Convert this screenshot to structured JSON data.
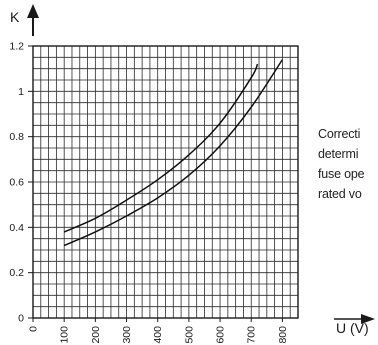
{
  "chart_data": {
    "type": "line",
    "title": "",
    "ylabel": "K",
    "xlabel": "U (V)",
    "xlim": [
      0,
      850
    ],
    "ylim": [
      0,
      1.2
    ],
    "grid": true,
    "x_ticks": [
      0,
      100,
      200,
      300,
      400,
      500,
      600,
      700,
      800
    ],
    "y_ticks": [
      0,
      0.2,
      0.4,
      0.6,
      0.8,
      1,
      1.2
    ],
    "x_tick_labels": [
      "0",
      "100",
      "200",
      "300",
      "400",
      "500",
      "600",
      "700",
      "800"
    ],
    "y_tick_labels": [
      "0",
      "0.2",
      "0.4",
      "0.6",
      "0.8",
      "1",
      "1.2"
    ],
    "series": [
      {
        "x": [
          100,
          200,
          300,
          400,
          500,
          600,
          700,
          720
        ],
        "y": [
          0.38,
          0.44,
          0.52,
          0.61,
          0.72,
          0.86,
          1.06,
          1.12
        ]
      },
      {
        "x": [
          100,
          200,
          300,
          400,
          500,
          600,
          700,
          800
        ],
        "y": [
          0.32,
          0.38,
          0.45,
          0.53,
          0.63,
          0.76,
          0.93,
          1.14
        ]
      }
    ]
  },
  "side_note": {
    "lines": [
      "Correcti",
      "determi",
      "fuse ope",
      "rated vo"
    ]
  }
}
